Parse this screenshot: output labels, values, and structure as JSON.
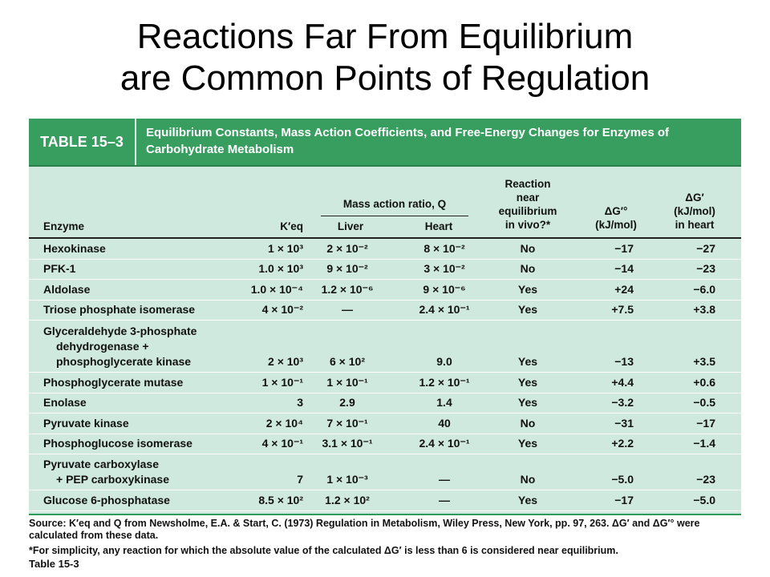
{
  "slide": {
    "title_line1": "Reactions Far From Equilibrium",
    "title_line2": "are Common Points of Regulation"
  },
  "table": {
    "label": "TABLE 15–3",
    "title": "Equilibrium Constants, Mass Action Coefficients, and Free-Energy Changes for Enzymes of Carbohydrate Metabolism",
    "headers": {
      "enzyme": "Enzyme",
      "keq": "K′eq",
      "mass_action": "Mass action ratio, Q",
      "liver": "Liver",
      "heart": "Heart",
      "near_eq": [
        "Reaction",
        "near",
        "equilibrium",
        "in vivo?*"
      ],
      "dg0": [
        "ΔG′°",
        "(kJ/mol)"
      ],
      "dg": [
        "ΔG′",
        "(kJ/mol)",
        "in heart"
      ]
    },
    "rows": [
      {
        "enzyme": [
          "Hexokinase"
        ],
        "keq": "1 × 10³",
        "liver": "2 × 10⁻²",
        "heart": "8 × 10⁻²",
        "near": "No",
        "dg0": "−17",
        "dg": "−27"
      },
      {
        "enzyme": [
          "PFK-1"
        ],
        "keq": "1.0 × 10³",
        "liver": "9 × 10⁻²",
        "heart": "3 × 10⁻²",
        "near": "No",
        "dg0": "−14",
        "dg": "−23"
      },
      {
        "enzyme": [
          "Aldolase"
        ],
        "keq": "1.0 × 10⁻⁴",
        "liver": "1.2 × 10⁻⁶",
        "heart": "9 × 10⁻⁶",
        "near": "Yes",
        "dg0": "+24",
        "dg": "−6.0"
      },
      {
        "enzyme": [
          "Triose phosphate isomerase"
        ],
        "keq": "4 × 10⁻²",
        "liver": "—",
        "heart": "2.4 × 10⁻¹",
        "near": "Yes",
        "dg0": "+7.5",
        "dg": "+3.8"
      },
      {
        "enzyme": [
          "Glyceraldehyde 3-phosphate",
          "dehydrogenase +",
          "phosphoglycerate kinase"
        ],
        "keq": "2 × 10³",
        "liver": "6 × 10²",
        "heart": "9.0",
        "near": "Yes",
        "dg0": "−13",
        "dg": "+3.5"
      },
      {
        "enzyme": [
          "Phosphoglycerate mutase"
        ],
        "keq": "1 × 10⁻¹",
        "liver": "1 × 10⁻¹",
        "heart": "1.2 × 10⁻¹",
        "near": "Yes",
        "dg0": "+4.4",
        "dg": "+0.6"
      },
      {
        "enzyme": [
          "Enolase"
        ],
        "keq": "3",
        "liver": "2.9",
        "heart": "1.4",
        "near": "Yes",
        "dg0": "−3.2",
        "dg": "−0.5"
      },
      {
        "enzyme": [
          "Pyruvate kinase"
        ],
        "keq": "2 × 10⁴",
        "liver": "7 × 10⁻¹",
        "heart": "40",
        "near": "No",
        "dg0": "−31",
        "dg": "−17"
      },
      {
        "enzyme": [
          "Phosphoglucose isomerase"
        ],
        "keq": "4 × 10⁻¹",
        "liver": "3.1 × 10⁻¹",
        "heart": "2.4 × 10⁻¹",
        "near": "Yes",
        "dg0": "+2.2",
        "dg": "−1.4"
      },
      {
        "enzyme": [
          "Pyruvate carboxylase",
          "+ PEP carboxykinase"
        ],
        "keq": "7",
        "liver": "1 × 10⁻³",
        "heart": "—",
        "near": "No",
        "dg0": "−5.0",
        "dg": "−23"
      },
      {
        "enzyme": [
          "Glucose 6-phosphatase"
        ],
        "keq": "8.5 × 10²",
        "liver": "1.2 × 10²",
        "heart": "—",
        "near": "Yes",
        "dg0": "−17",
        "dg": "−5.0"
      }
    ]
  },
  "footnotes": {
    "source": "Source: K′eq and Q from Newsholme, E.A. & Start, C. (1973) Regulation in Metabolism, Wiley Press, New York, pp. 97, 263. ΔG′ and ΔG′° were calculated from these data.",
    "note": "*For simplicity, any reaction for which the absolute value of the calculated ΔG′ is less than 6 is considered near equilibrium.",
    "caption": "Table 15-3"
  }
}
